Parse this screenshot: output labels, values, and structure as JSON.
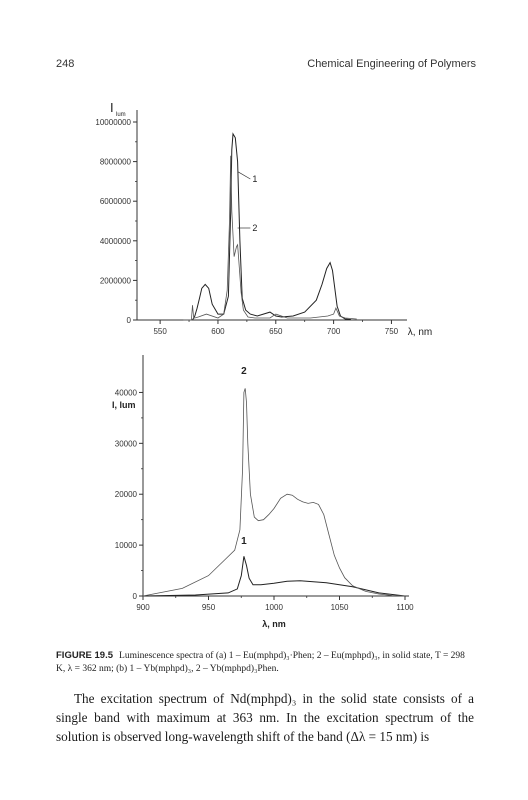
{
  "page": {
    "number": "248",
    "running_head": "Chemical Engineering of Polymers"
  },
  "chart_data": [
    {
      "type": "line",
      "panel": "a",
      "ylabel": "I",
      "ylabel_sub": "lum",
      "xlabel": "λ, nm",
      "xlim": [
        530,
        760
      ],
      "ylim": [
        0,
        10000000
      ],
      "xticks": [
        "550",
        "600",
        "650",
        "700",
        "750"
      ],
      "yticks": [
        "0",
        "2000000",
        "4000000",
        "6000000",
        "8000000",
        "10000000"
      ],
      "series": [
        {
          "name": "1",
          "x": [
            578,
            580,
            582,
            584,
            586,
            589,
            592,
            595,
            600,
            605,
            609,
            611,
            612,
            613,
            615,
            617,
            619,
            621,
            624,
            628,
            634,
            645,
            650,
            655,
            665,
            675,
            685,
            690,
            694,
            697,
            699,
            701,
            703,
            706,
            710,
            715
          ],
          "y": [
            0,
            200000,
            600000,
            1100000,
            1600000,
            1800000,
            1600000,
            800000,
            300000,
            300000,
            1200000,
            5500000,
            8600000,
            9400000,
            9200000,
            8000000,
            4000000,
            1100000,
            500000,
            300000,
            200000,
            400000,
            200000,
            150000,
            200000,
            400000,
            1000000,
            1800000,
            2600000,
            2900000,
            2500000,
            1600000,
            700000,
            200000,
            50000,
            20000
          ]
        },
        {
          "name": "2",
          "x": [
            570,
            577,
            578,
            579,
            580,
            583,
            590,
            600,
            605,
            608,
            610,
            611,
            612,
            614,
            616,
            617,
            618,
            620,
            622,
            626,
            632,
            645,
            650,
            660,
            680,
            695,
            700,
            702,
            705,
            710,
            720
          ],
          "y": [
            0,
            0,
            750000,
            100000,
            100000,
            150000,
            300000,
            100000,
            300000,
            1500000,
            5000000,
            8300000,
            5500000,
            3200000,
            3700000,
            3800000,
            3000000,
            1400000,
            500000,
            150000,
            100000,
            100000,
            300000,
            100000,
            100000,
            200000,
            300000,
            600000,
            200000,
            100000,
            50000
          ]
        }
      ]
    },
    {
      "type": "line",
      "panel": "b",
      "ylabel": "I, lum",
      "xlabel": "λ, nm",
      "xlim": [
        900,
        1100
      ],
      "ylim": [
        0,
        45000
      ],
      "xticks": [
        "900",
        "950",
        "1000",
        "1050",
        "1100"
      ],
      "yticks": [
        "0",
        "10000",
        "20000",
        "30000",
        "40000"
      ],
      "series": [
        {
          "name": "1",
          "x": [
            900,
            940,
            965,
            972,
            975,
            977,
            979,
            981,
            984,
            990,
            1000,
            1010,
            1020,
            1040,
            1060,
            1080,
            1100
          ],
          "y": [
            0,
            200,
            600,
            1400,
            4000,
            7800,
            6000,
            3500,
            2200,
            2200,
            2500,
            2900,
            3000,
            2600,
            1800,
            600,
            0
          ]
        },
        {
          "name": "2",
          "x": [
            900,
            930,
            950,
            962,
            970,
            974,
            976,
            977,
            978,
            979,
            980,
            982,
            985,
            988,
            992,
            996,
            1000,
            1005,
            1010,
            1014,
            1018,
            1022,
            1026,
            1030,
            1034,
            1038,
            1042,
            1046,
            1050,
            1054,
            1060,
            1070,
            1080,
            1090,
            1100
          ],
          "y": [
            0,
            1500,
            4000,
            7000,
            9000,
            13000,
            25000,
            40000,
            40800,
            38000,
            30000,
            20000,
            15500,
            14800,
            15000,
            16000,
            17200,
            19200,
            20000,
            19800,
            19000,
            18500,
            18200,
            18400,
            18000,
            16000,
            12000,
            8000,
            5500,
            3600,
            2000,
            900,
            400,
            100,
            0
          ]
        }
      ]
    }
  ],
  "caption": {
    "label": "FIGURE 19.5",
    "text": "Luminescence spectra of (a) 1 – Eu(mphpd)₃·Phen; 2 – Eu(mphpd)₃, in solid state, T = 298 K, λ = 362 nm; (b) 1 – Yb(mphpd)₃, 2 – Yb(mphpd)₃Phen."
  },
  "body_text": "The excitation spectrum of Nd(mphpd)₃ in the solid state consists of a single band with maximum at 363 nm. In the excitation spectrum of the solution is observed long-wavelength shift of the band (Δλ = 15 nm) is"
}
